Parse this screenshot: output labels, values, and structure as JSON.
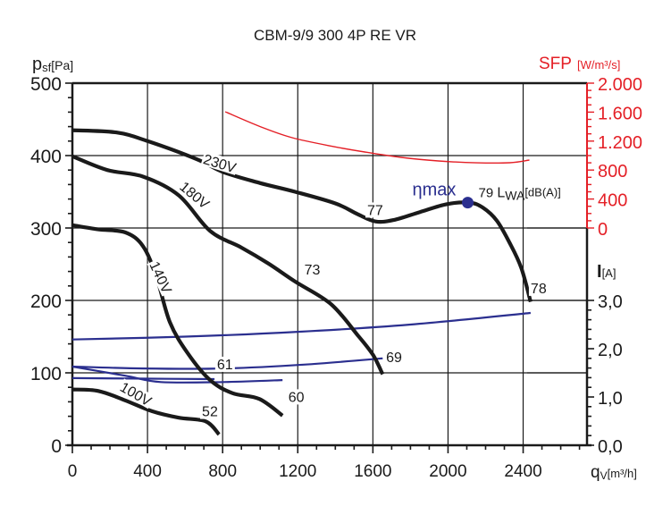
{
  "chart_data": {
    "type": "line",
    "title": "CBM-9/9 300 4P RE VR",
    "xlabel": "q",
    "xlabel_sub": "V",
    "xlabel_unit": "[m³/h]",
    "ylabel": "p",
    "ylabel_sub": "sf",
    "ylabel_unit": "[Pa]",
    "sfp_label": "SFP",
    "sfp_unit": "[W/m³/s]",
    "current_label": "I",
    "current_unit": "[A]",
    "xlim": [
      0,
      2740
    ],
    "ylim": [
      0,
      500
    ],
    "sfp_lim": [
      0,
      2000
    ],
    "current_lim": [
      0,
      3.0
    ],
    "x_ticks": [
      "0",
      "400",
      "800",
      "1200",
      "1600",
      "2000",
      "2400"
    ],
    "x_tick_values": [
      0,
      400,
      800,
      1200,
      1600,
      2000,
      2400
    ],
    "y_ticks": [
      "0",
      "100",
      "200",
      "300",
      "400",
      "500"
    ],
    "y_tick_values": [
      0,
      100,
      200,
      300,
      400,
      500
    ],
    "sfp_ticks": [
      "0",
      "400",
      "800",
      "1.200",
      "1.600",
      "2.000"
    ],
    "sfp_tick_values": [
      0,
      400,
      800,
      1200,
      1600,
      2000
    ],
    "current_ticks": [
      "0,0",
      "1,0",
      "2,0",
      "3,0"
    ],
    "current_tick_values": [
      0,
      1,
      2,
      3
    ],
    "grid": true,
    "colors": {
      "pressure": "#1a1a1a",
      "current": "#2b2f8f",
      "sfp": "#e41f26",
      "eta": "#2b2f8f"
    },
    "pressure_series": [
      {
        "name": "230V",
        "label_at": [
          780,
          385
        ],
        "label_angle": 17,
        "x": [
          0,
          233,
          400,
          662,
          805,
          1000,
          1186,
          1400,
          1519,
          1614,
          1710,
          1850,
          1995,
          2114,
          2186,
          2260,
          2329,
          2390,
          2440
        ],
        "y": [
          435,
          432,
          420,
          395,
          377,
          362,
          350,
          334,
          319,
          309,
          311,
          322,
          333,
          335,
          328,
          310,
          279,
          245,
          198
        ]
      },
      {
        "name": "180V",
        "label_at": [
          640,
          342
        ],
        "label_angle": 40,
        "x": [
          0,
          186,
          376,
          567,
          733,
          900,
          1043,
          1186,
          1376,
          1519,
          1600,
          1652
        ],
        "y": [
          399,
          380,
          371,
          345,
          296,
          273,
          251,
          226,
          195,
          152,
          125,
          98
        ]
      },
      {
        "name": "140V",
        "label_at": [
          455,
          230
        ],
        "label_angle": 65,
        "x": [
          0,
          138,
          281,
          376,
          448,
          519,
          614,
          733,
          852,
          995,
          1119
        ],
        "y": [
          304,
          298,
          294,
          275,
          232,
          170,
          127,
          90,
          72,
          64,
          41
        ]
      },
      {
        "name": "100V",
        "label_at": [
          330,
          67
        ],
        "label_angle": 30,
        "x": [
          0,
          138,
          281,
          424,
          567,
          710,
          781
        ],
        "y": [
          77,
          75,
          62,
          47,
          38,
          33,
          15
        ]
      }
    ],
    "current_series": [
      {
        "name": "I 230V",
        "x": [
          0,
          600,
          1200,
          1800,
          2440
        ],
        "y": [
          2.19,
          2.25,
          2.35,
          2.5,
          2.74
        ]
      },
      {
        "name": "I 180V",
        "x": [
          0,
          376,
          805,
          1233,
          1652
        ],
        "y": [
          1.63,
          1.59,
          1.59,
          1.67,
          1.8
        ]
      },
      {
        "name": "I 140V",
        "x": [
          0,
          281,
          471,
          805,
          1119
        ],
        "y": [
          1.63,
          1.44,
          1.31,
          1.31,
          1.35
        ]
      },
      {
        "name": "I 100V",
        "x": [
          0,
          400,
          757
        ],
        "y": [
          1.39,
          1.38,
          1.37
        ]
      }
    ],
    "sfp_series": {
      "name": "SFP",
      "x": [
        814,
        1000,
        1170,
        1400,
        1557,
        1750,
        1948,
        2150,
        2329,
        2433
      ],
      "y": [
        1605,
        1400,
        1247,
        1120,
        1049,
        975,
        926,
        900,
        901,
        938
      ]
    },
    "noise_labels": [
      {
        "text": "77",
        "x": 1570,
        "y": 318
      },
      {
        "text": "73",
        "x": 1235,
        "y": 236
      },
      {
        "text": "69",
        "x": 1670,
        "y": 115
      },
      {
        "text": "61",
        "x": 770,
        "y": 105
      },
      {
        "text": "60",
        "x": 1150,
        "y": 60
      },
      {
        "text": "52",
        "x": 690,
        "y": 40
      },
      {
        "text": "78",
        "x": 2440,
        "y": 210
      }
    ],
    "eta_max": {
      "label": "ηmax",
      "x": 2105,
      "y": 335,
      "lwa_value": "79",
      "lwa_label": "L",
      "lwa_sub": "WA",
      "lwa_unit": "[dB(A)]"
    }
  }
}
